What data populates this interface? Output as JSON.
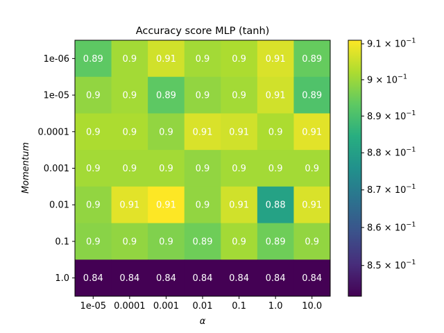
{
  "chart_data": {
    "type": "heatmap",
    "title": "Accuracy score MLP (tanh)",
    "xlabel": "α",
    "ylabel": "Momentum",
    "x_categories": [
      "1e-05",
      "0.0001",
      "0.001",
      "0.01",
      "0.1",
      "1.0",
      "10.0"
    ],
    "y_categories": [
      "1e-06",
      "1e-05",
      "0.0001",
      "0.001",
      "0.01",
      "0.1",
      "1.0"
    ],
    "values": [
      [
        0.893,
        0.901,
        0.906,
        0.901,
        0.902,
        0.907,
        0.894
      ],
      [
        0.899,
        0.901,
        0.893,
        0.899,
        0.901,
        0.906,
        0.891
      ],
      [
        0.902,
        0.902,
        0.899,
        0.907,
        0.906,
        0.902,
        0.908
      ],
      [
        0.901,
        0.901,
        0.901,
        0.899,
        0.901,
        0.901,
        0.901
      ],
      [
        0.899,
        0.908,
        0.911,
        0.899,
        0.906,
        0.881,
        0.907
      ],
      [
        0.898,
        0.899,
        0.897,
        0.895,
        0.901,
        0.895,
        0.899
      ],
      [
        0.842,
        0.842,
        0.842,
        0.842,
        0.842,
        0.842,
        0.842
      ]
    ],
    "annotations": [
      [
        "0.89",
        "0.9",
        "0.91",
        "0.9",
        "0.9",
        "0.91",
        "0.89"
      ],
      [
        "0.9",
        "0.9",
        "0.89",
        "0.9",
        "0.9",
        "0.91",
        "0.89"
      ],
      [
        "0.9",
        "0.9",
        "0.9",
        "0.91",
        "0.91",
        "0.9",
        "0.91"
      ],
      [
        "0.9",
        "0.9",
        "0.9",
        "0.9",
        "0.9",
        "0.9",
        "0.9"
      ],
      [
        "0.9",
        "0.91",
        "0.91",
        "0.9",
        "0.91",
        "0.88",
        "0.91"
      ],
      [
        "0.9",
        "0.9",
        "0.9",
        "0.89",
        "0.9",
        "0.89",
        "0.9"
      ],
      [
        "0.84",
        "0.84",
        "0.84",
        "0.84",
        "0.84",
        "0.84",
        "0.84"
      ]
    ],
    "colormap": "viridis",
    "color_scale": "log",
    "color_range": [
      0.842,
      0.911
    ],
    "colorbar": {
      "ticks": [
        {
          "value": 0.91,
          "mantissa": "9.1",
          "base": "10",
          "exp": "−1"
        },
        {
          "value": 0.9,
          "mantissa": "9",
          "base": "10",
          "exp": "−1"
        },
        {
          "value": 0.89,
          "mantissa": "8.9",
          "base": "10",
          "exp": "−1"
        },
        {
          "value": 0.88,
          "mantissa": "8.8",
          "base": "10",
          "exp": "−1"
        },
        {
          "value": 0.87,
          "mantissa": "8.7",
          "base": "10",
          "exp": "−1"
        },
        {
          "value": 0.86,
          "mantissa": "8.6",
          "base": "10",
          "exp": "−1"
        },
        {
          "value": 0.85,
          "mantissa": "8.5",
          "base": "10",
          "exp": "−1"
        }
      ]
    }
  }
}
